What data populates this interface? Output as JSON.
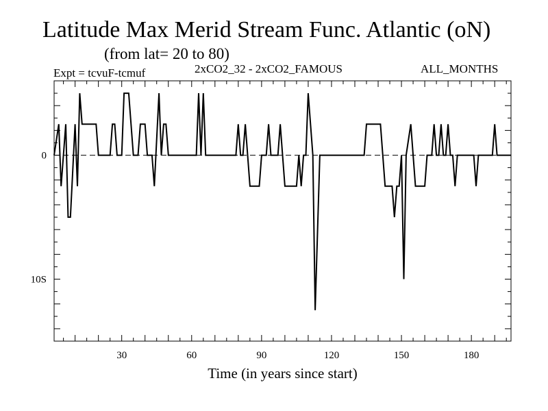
{
  "header": {
    "title": "Latitude Max Merid Stream Func. Atlantic (oN)",
    "subtitle": "(from lat= 20 to 80)",
    "expt": "Expt = tcvuF-tcmuf",
    "difference": "2xCO2_32 - 2xCO2_FAMOUS",
    "months": "ALL_MONTHS"
  },
  "chart_data": {
    "type": "line",
    "title": "Latitude Max Merid Stream Func. Atlantic (oN)",
    "subtitle": "(from lat= 20 to 80)",
    "xlabel": "Time (in years since start)",
    "ylabel": "",
    "xlim": [
      1,
      197
    ],
    "ylim": [
      -15,
      6
    ],
    "x_ticks": [
      30,
      60,
      90,
      120,
      150,
      180
    ],
    "y_ticks": [
      {
        "value": 0,
        "label": "0"
      },
      {
        "value": -10,
        "label": "10S"
      }
    ],
    "zero_line": "dashed",
    "grid": false,
    "series": [
      {
        "points": [
          [
            1,
            0
          ],
          [
            3,
            2.5
          ],
          [
            4,
            -2.5
          ],
          [
            6,
            2.5
          ],
          [
            7,
            -5
          ],
          [
            8,
            -5
          ],
          [
            10,
            2.5
          ],
          [
            11,
            -2.5
          ],
          [
            12,
            5
          ],
          [
            13,
            2.5
          ],
          [
            19,
            2.5
          ],
          [
            20,
            0
          ],
          [
            25,
            0
          ],
          [
            26,
            2.5
          ],
          [
            27,
            2.5
          ],
          [
            28,
            0
          ],
          [
            30,
            0
          ],
          [
            31,
            5
          ],
          [
            33,
            5
          ],
          [
            35,
            0
          ],
          [
            37,
            0
          ],
          [
            38,
            2.5
          ],
          [
            40,
            2.5
          ],
          [
            41,
            0
          ],
          [
            43,
            0
          ],
          [
            44,
            -2.5
          ],
          [
            46,
            5
          ],
          [
            47,
            0
          ],
          [
            48,
            2.5
          ],
          [
            49,
            2.5
          ],
          [
            50,
            0
          ],
          [
            62,
            0
          ],
          [
            63,
            5
          ],
          [
            64,
            0
          ],
          [
            65,
            5
          ],
          [
            66,
            0
          ],
          [
            79,
            0
          ],
          [
            80,
            2.5
          ],
          [
            81,
            0
          ],
          [
            82,
            0
          ],
          [
            83,
            2.5
          ],
          [
            84,
            0
          ],
          [
            85,
            -2.5
          ],
          [
            89,
            -2.5
          ],
          [
            90,
            0
          ],
          [
            92,
            0
          ],
          [
            93,
            2.5
          ],
          [
            94,
            0
          ],
          [
            97,
            0
          ],
          [
            98,
            2.5
          ],
          [
            99,
            0
          ],
          [
            100,
            -2.5
          ],
          [
            105,
            -2.5
          ],
          [
            106,
            0
          ],
          [
            107,
            -2.5
          ],
          [
            108,
            0
          ],
          [
            109,
            0
          ],
          [
            110,
            5
          ],
          [
            112,
            0
          ],
          [
            113,
            -12.5
          ],
          [
            115,
            0
          ],
          [
            134,
            0
          ],
          [
            135,
            2.5
          ],
          [
            141,
            2.5
          ],
          [
            142,
            0
          ],
          [
            143,
            -2.5
          ],
          [
            146,
            -2.5
          ],
          [
            147,
            -5
          ],
          [
            148,
            -2.5
          ],
          [
            149,
            -2.5
          ],
          [
            150,
            0
          ],
          [
            151,
            -10
          ],
          [
            152,
            0
          ],
          [
            154,
            2.5
          ],
          [
            155,
            0
          ],
          [
            156,
            -2.5
          ],
          [
            160,
            -2.5
          ],
          [
            161,
            0
          ],
          [
            163,
            0
          ],
          [
            164,
            2.5
          ],
          [
            165,
            0
          ],
          [
            166,
            0
          ],
          [
            167,
            2.5
          ],
          [
            168,
            0
          ],
          [
            169,
            0
          ],
          [
            170,
            2.5
          ],
          [
            171,
            0
          ],
          [
            172,
            0
          ],
          [
            173,
            -2.5
          ],
          [
            174,
            0
          ],
          [
            181,
            0
          ],
          [
            182,
            -2.5
          ],
          [
            183,
            0
          ],
          [
            189,
            0
          ],
          [
            190,
            2.5
          ],
          [
            191,
            0
          ],
          [
            197,
            0
          ]
        ]
      }
    ]
  }
}
